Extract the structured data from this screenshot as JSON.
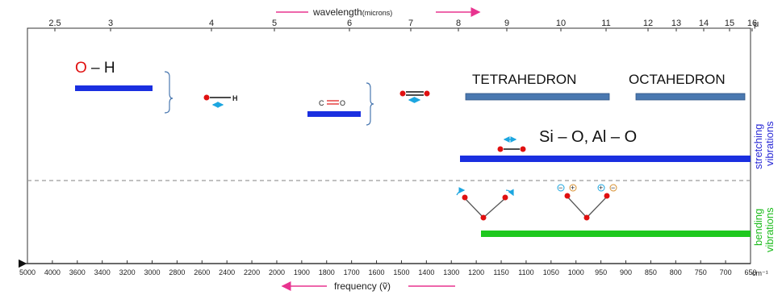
{
  "top_axis": {
    "title": "wavelength",
    "title_unit": "(microns)",
    "ticks": [
      "2.5",
      "3",
      "4",
      "5",
      "6",
      "7",
      "8",
      "9",
      "10",
      "11",
      "12",
      "13",
      "14",
      "15",
      "16"
    ],
    "unit": "μ"
  },
  "bottom_axis": {
    "title": "frequency",
    "title_symbol": "(ṽ)",
    "ticks": [
      "5000",
      "4000",
      "3600",
      "3400",
      "3200",
      "3000",
      "2800",
      "2600",
      "2400",
      "2200",
      "2000",
      "1900",
      "1800",
      "1700",
      "1600",
      "1500",
      "1400",
      "1300",
      "1200",
      "1150",
      "1100",
      "1050",
      "1000",
      "950",
      "900",
      "850",
      "800",
      "750",
      "700",
      "650"
    ],
    "unit": "cm⁻¹"
  },
  "labels": {
    "oh_o": "O",
    "oh_rest": " – H",
    "ch_h": "H",
    "co_c": "C",
    "co_o": "O",
    "tetrahedron": "TETRAHEDRON",
    "octahedron": "OCTAHEDRON",
    "sio": "Si – O, Al – O",
    "stretching_1": "stretching",
    "stretching_2": "vibrations",
    "bending_1": "bending",
    "bending_2": "vibrations",
    "minus": "−",
    "plus": "+"
  },
  "colors": {
    "blue_band": "#1a2fe0",
    "steel_band": "#4a78b0",
    "green_band": "#1ec81e",
    "arrow_pink": "#e8338f",
    "arrow_cyan": "#1ca6e0",
    "atom_red": "#e01010",
    "stretch_text": "#2b2bd6",
    "bend_text": "#1ebc1e"
  }
}
